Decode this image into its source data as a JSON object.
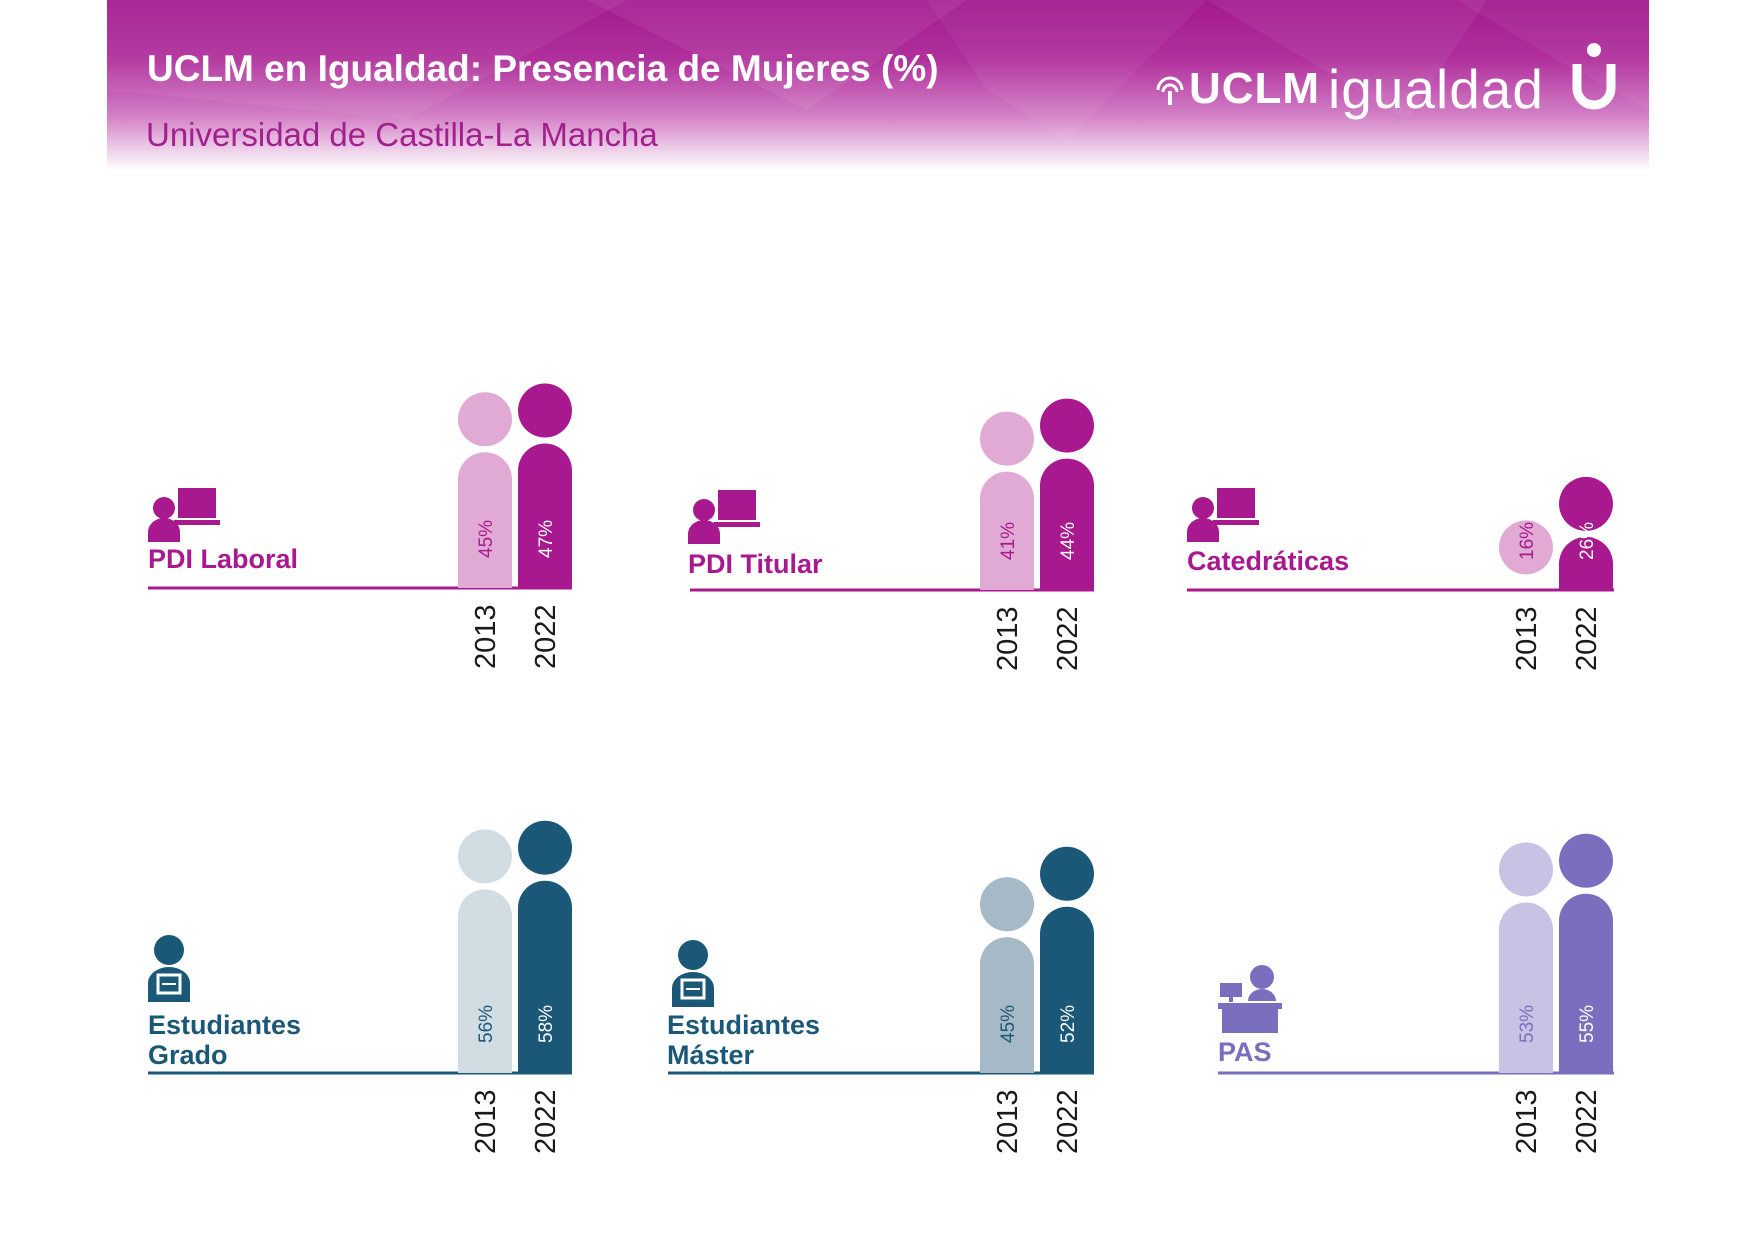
{
  "header": {
    "title": "UCLM en Igualdad: Presencia de Mujeres (%)",
    "subtitle": "Universidad de Castilla-La Mancha",
    "logo_uclm": "UCLM",
    "logo_igualdad": "igualdad"
  },
  "chart_data": [
    {
      "type": "bar",
      "title": "PDI Laboral",
      "icon": "teacher-at-desk-icon",
      "categories": [
        "2013",
        "2022"
      ],
      "values": [
        45,
        47
      ],
      "labels": [
        "45%",
        "47%"
      ],
      "colors": {
        "2013": "#e0aad4",
        "2022": "#a8198f",
        "label": "#a8198f"
      }
    },
    {
      "type": "bar",
      "title": "PDI Titular",
      "icon": "teacher-at-desk-icon",
      "categories": [
        "2013",
        "2022"
      ],
      "values": [
        41,
        44
      ],
      "labels": [
        "41%",
        "44%"
      ],
      "colors": {
        "2013": "#e0aad4",
        "2022": "#a8198f",
        "label": "#a8198f"
      }
    },
    {
      "type": "bar",
      "title": "Catedráticas",
      "icon": "teacher-at-desk-icon",
      "categories": [
        "2013",
        "2022"
      ],
      "values": [
        16,
        26
      ],
      "labels": [
        "16%",
        "26%"
      ],
      "colors": {
        "2013": "#e0aad4",
        "2022": "#a8198f",
        "label": "#a8198f"
      }
    },
    {
      "type": "bar",
      "title": "Estudiantes Grado",
      "title_lines": [
        "Estudiantes",
        "Grado"
      ],
      "icon": "student-backpack-icon",
      "categories": [
        "2013",
        "2022"
      ],
      "values": [
        56,
        58
      ],
      "labels": [
        "56%",
        "58%"
      ],
      "colors": {
        "2013": "#d2dde3",
        "2022": "#1b5878",
        "label": "#1b5878"
      }
    },
    {
      "type": "bar",
      "title": "Estudiantes Máster",
      "title_lines": [
        "Estudiantes",
        "Máster"
      ],
      "icon": "student-backpack-icon",
      "categories": [
        "2013",
        "2022"
      ],
      "values": [
        45,
        52
      ],
      "labels": [
        "45%",
        "52%"
      ],
      "colors": {
        "2013": "#a6b9c6",
        "2022": "#1b5878",
        "label": "#1b5878"
      }
    },
    {
      "type": "bar",
      "title": "PAS",
      "icon": "staff-reception-desk-icon",
      "categories": [
        "2013",
        "2022"
      ],
      "values": [
        53,
        55
      ],
      "labels": [
        "53%",
        "55%"
      ],
      "colors": {
        "2013": "#c8c2e4",
        "2022": "#7a6fbe",
        "label": "#7a6fbe"
      }
    }
  ]
}
